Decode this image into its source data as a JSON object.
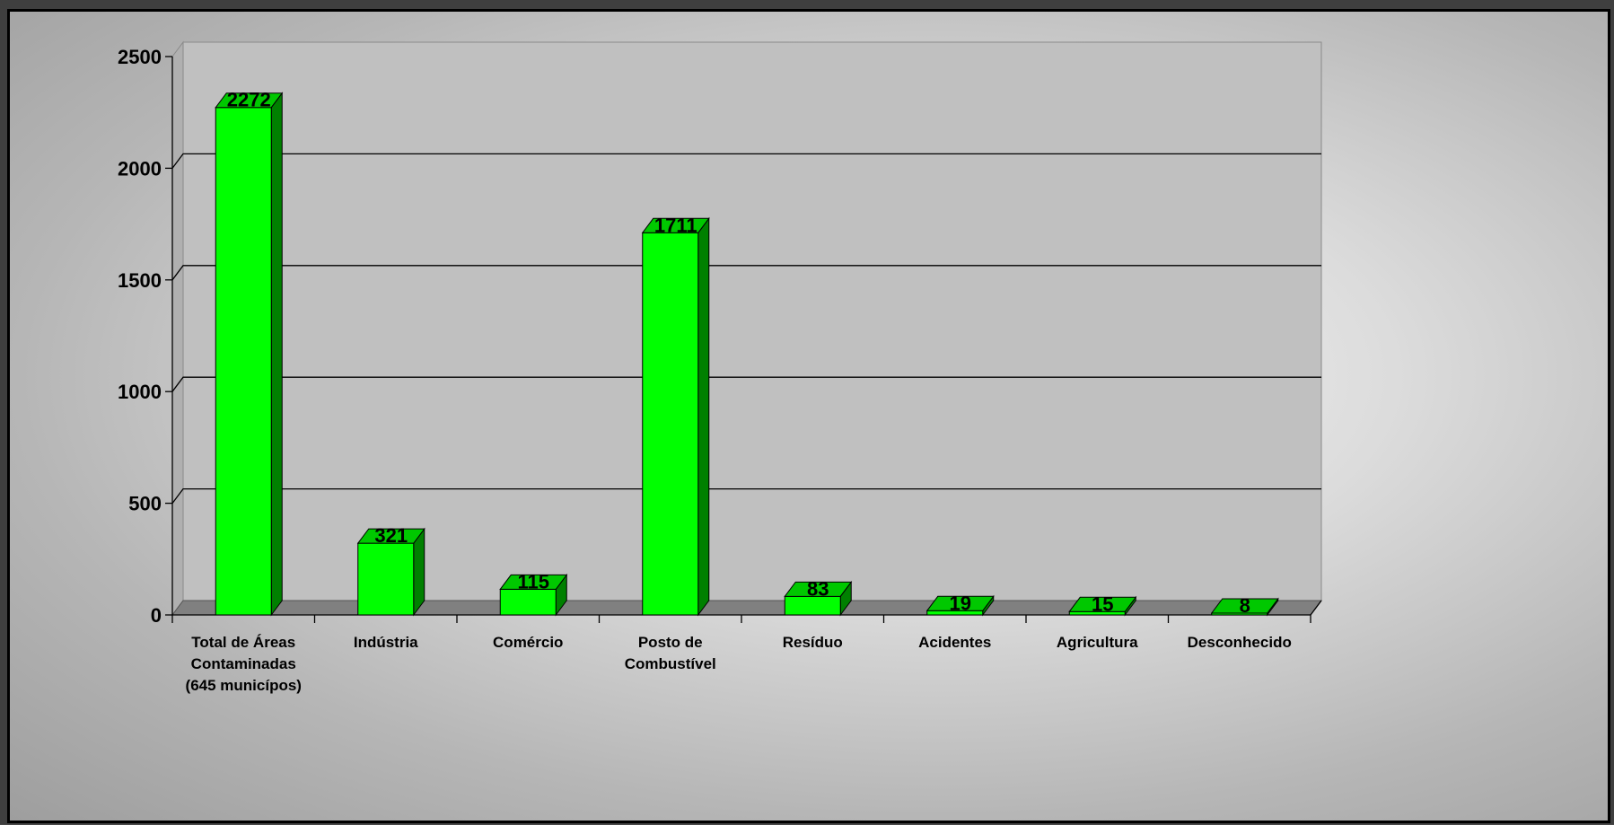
{
  "chart_data": {
    "type": "bar",
    "categories": [
      [
        "Total de Áreas",
        "Contaminadas",
        "(645 municípos)"
      ],
      [
        "Indústria"
      ],
      [
        "Comércio"
      ],
      [
        "Posto de",
        "Combustível"
      ],
      [
        "Resíduo"
      ],
      [
        "Acidentes"
      ],
      [
        "Agricultura"
      ],
      [
        "Desconhecido"
      ]
    ],
    "values": [
      2272,
      321,
      115,
      1711,
      83,
      19,
      15,
      8
    ],
    "data_labels": [
      "2272",
      "321",
      "115",
      "1711",
      "83",
      "19",
      "15",
      "8"
    ],
    "y_ticks": [
      0,
      500,
      1000,
      1500,
      2000,
      2500
    ],
    "ylim": [
      0,
      2500
    ],
    "grid": true,
    "legend": "none",
    "colors": {
      "bar_front": "#00ff00",
      "bar_side": "#008000",
      "bar_top": "#00c800",
      "plot_wall": "#c0c0c0",
      "plot_floor": "#808080",
      "gridline": "#000000"
    }
  }
}
